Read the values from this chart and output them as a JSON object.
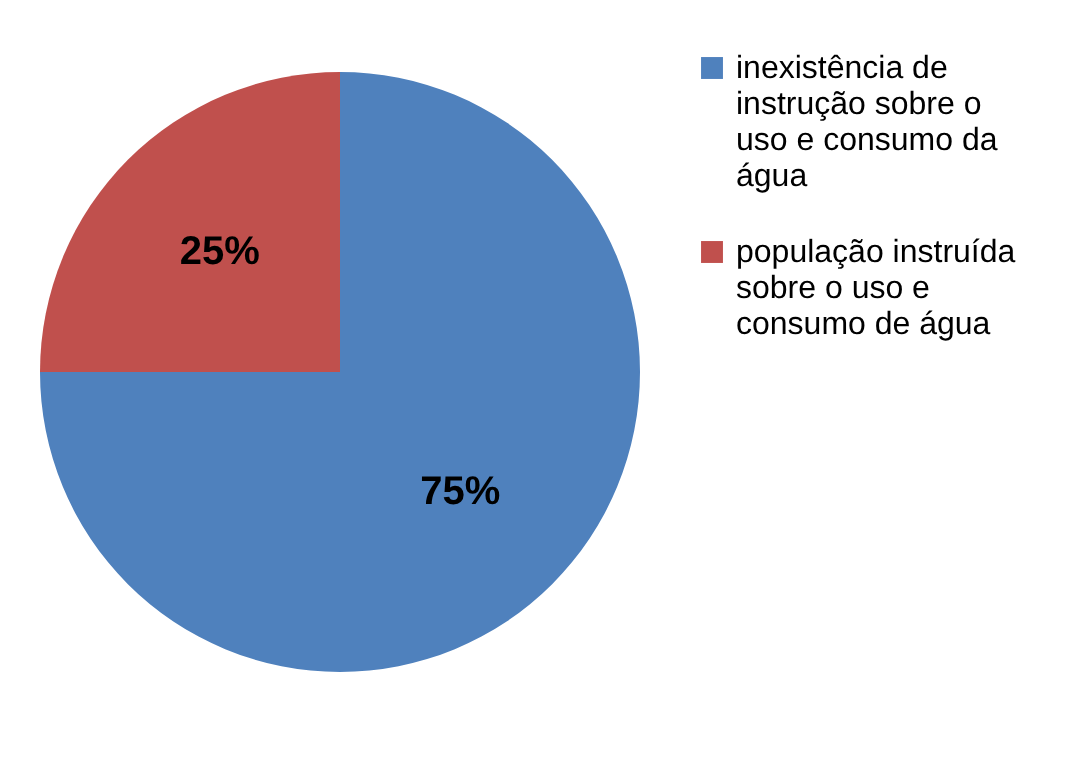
{
  "chart_data": {
    "type": "pie",
    "categories": [
      "inexistência de instrução sobre o uso e consumo da água",
      "população instruída sobre o uso e consumo de água"
    ],
    "values": [
      75,
      25
    ],
    "colors": [
      "#4f81bd",
      "#c0504d"
    ],
    "value_labels": [
      "75%",
      "25%"
    ],
    "legend": "right"
  }
}
